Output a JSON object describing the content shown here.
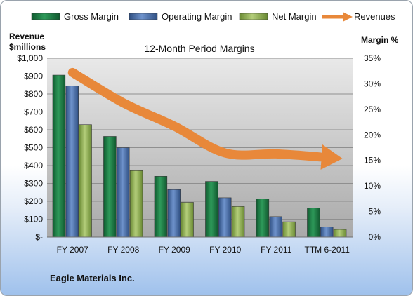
{
  "chart_data": {
    "type": "bar",
    "title": "12-Month Period Margins",
    "footer": "Eagle Materials Inc.",
    "categories": [
      "FY 2007",
      "FY 2008",
      "FY 2009",
      "FY 2010",
      "FY 2011",
      "TTM 6-2011"
    ],
    "left_axis": {
      "label_line1": "Revenue",
      "label_line2": "$millions",
      "ylim": [
        0,
        1000
      ],
      "ticks": [
        0,
        100,
        200,
        300,
        400,
        500,
        600,
        700,
        800,
        900,
        1000
      ],
      "tick_labels": [
        "$-",
        "$100",
        "$200",
        "$300",
        "$400",
        "$500",
        "$600",
        "$700",
        "$800",
        "$900",
        "$1,000"
      ]
    },
    "right_axis": {
      "label": "Margin %",
      "ylim": [
        0,
        35
      ],
      "ticks": [
        0,
        5,
        10,
        15,
        20,
        25,
        30,
        35
      ],
      "tick_labels": [
        "0%",
        "5%",
        "10%",
        "15%",
        "20%",
        "25%",
        "30%",
        "35%"
      ]
    },
    "grid": true,
    "legend_position": "top",
    "series": [
      {
        "name": "Gross Margin",
        "axis": "right",
        "kind": "bar",
        "color": "#1e7a45",
        "values": [
          31.7,
          19.7,
          11.9,
          10.9,
          7.5,
          5.7
        ]
      },
      {
        "name": "Operating Margin",
        "axis": "right",
        "kind": "bar",
        "color": "#4a6fa8",
        "values": [
          29.6,
          17.5,
          9.3,
          7.7,
          4.0,
          2.0
        ]
      },
      {
        "name": "Net Margin",
        "axis": "right",
        "kind": "bar",
        "color": "#8fae4e",
        "values": [
          22.0,
          13.0,
          6.8,
          6.0,
          3.0,
          1.5
        ]
      },
      {
        "name": "Revenues",
        "axis": "left",
        "kind": "line",
        "color": "#e8883a",
        "values": [
          920,
          750,
          620,
          470,
          465,
          445
        ]
      }
    ]
  }
}
